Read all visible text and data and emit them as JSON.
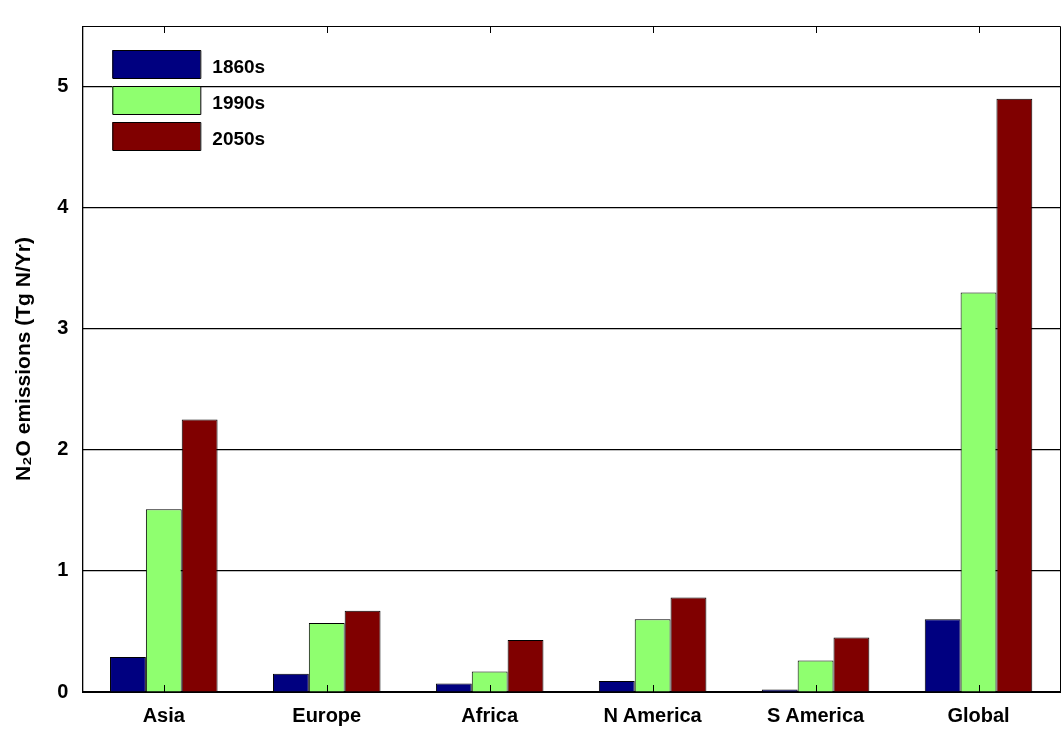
{
  "chart_data": {
    "type": "bar",
    "ylabel": "N₂O emissions (Tg N/Yr)",
    "categories": [
      "Asia",
      "Europe",
      "Africa",
      "N America",
      "S America",
      "Global"
    ],
    "series": [
      {
        "name": "1860s",
        "color": "#000080",
        "values": [
          0.29,
          0.15,
          0.07,
          0.09,
          0.02,
          0.6
        ]
      },
      {
        "name": "1990s",
        "color": "#8fff6f",
        "values": [
          1.51,
          0.57,
          0.17,
          0.6,
          0.26,
          3.3
        ]
      },
      {
        "name": "2050s",
        "color": "#800000",
        "values": [
          2.25,
          0.67,
          0.43,
          0.78,
          0.45,
          4.9
        ]
      }
    ],
    "ylim": [
      0,
      5.5
    ],
    "yticks": [
      0,
      1,
      2,
      3,
      4,
      5
    ],
    "grid": "y",
    "legend": "top left"
  }
}
